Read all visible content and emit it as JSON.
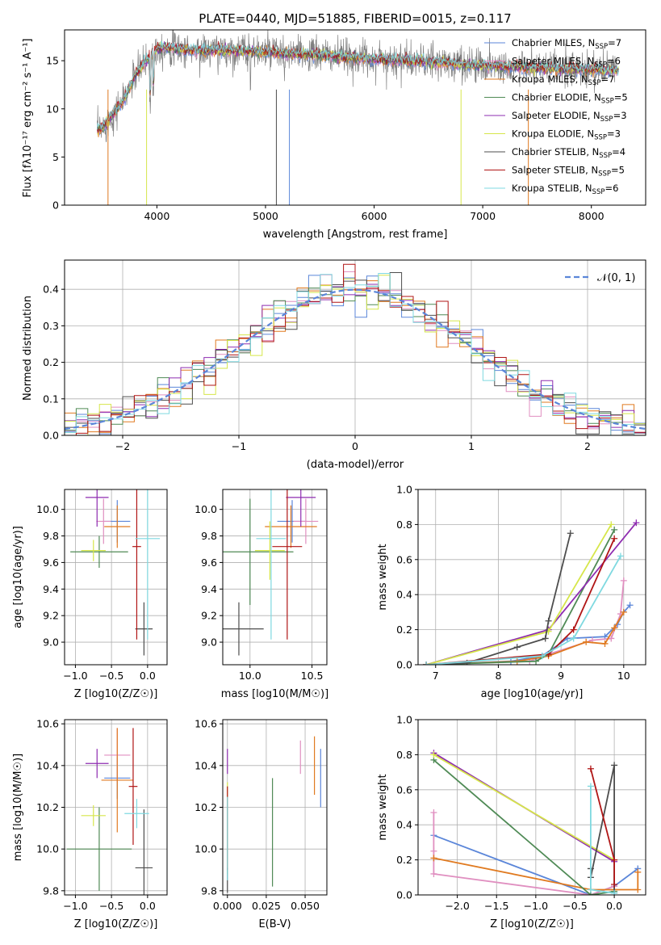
{
  "figure_title": "PLATE=0440, MJD=51885, FIBERID=0015, z=0.117",
  "colors": {
    "Chabrier MILES": "#5b86d9",
    "Salpeter MILES": "#e08fc0",
    "Kroupa MILES": "#e07a20",
    "Chabrier ELODIE": "#4f8a55",
    "Salpeter ELODIE": "#8e2cb0",
    "Kroupa ELODIE": "#d6e64a",
    "Chabrier STELIB": "#4d4d4d",
    "Salpeter STELIB": "#b01515",
    "Kroupa STELIB": "#7fd9e0"
  },
  "chart_data": [
    {
      "id": "spectrum",
      "type": "line",
      "title": "PLATE=0440, MJD=51885, FIBERID=0015, z=0.117",
      "xlabel": "wavelength [Angstrom, rest frame]",
      "ylabel": "Flux [f_λ 10^-17 erg cm^-2 s^-1 A^-1]",
      "xlim": [
        3150,
        8500
      ],
      "ylim": [
        0,
        18.2
      ],
      "xticks": [
        4000,
        5000,
        6000,
        7000,
        8000
      ],
      "yticks": [
        0,
        5,
        10,
        15
      ],
      "grid": false,
      "legend_position": "upper-right",
      "data_continuum": {
        "x": [
          3450,
          3500,
          3600,
          3700,
          3800,
          3900,
          4000,
          4100,
          4200,
          4400,
          4600,
          4800,
          5000,
          5200,
          5500,
          5800,
          6000,
          6300,
          6600,
          7000,
          7400,
          7800,
          8200
        ],
        "y": [
          7.8,
          8.0,
          9.5,
          11.0,
          13.5,
          15.0,
          16.3,
          16.4,
          16.2,
          16.0,
          16.1,
          16.0,
          15.9,
          15.7,
          15.6,
          15.3,
          15.2,
          15.0,
          14.8,
          14.5,
          14.3,
          14.1,
          14.0
        ]
      },
      "legend": [
        {
          "label": "Chabrier MILES",
          "nssp": "7"
        },
        {
          "label": "Salpeter MILES",
          "nssp": "6"
        },
        {
          "label": "Kroupa MILES",
          "nssp": "7"
        },
        {
          "label": "Chabrier ELODIE",
          "nssp": "5"
        },
        {
          "label": "Salpeter ELODIE",
          "nssp": "3"
        },
        {
          "label": "Kroupa ELODIE",
          "nssp": "3"
        },
        {
          "label": "Chabrier STELIB",
          "nssp": "4"
        },
        {
          "label": "Salpeter STELIB",
          "nssp": "5"
        },
        {
          "label": "Kroupa STELIB",
          "nssp": "6"
        }
      ],
      "nssp_label": "N_SSP="
    },
    {
      "id": "residuals",
      "type": "line",
      "xlabel": "(data-model)/error",
      "ylabel": "Normed distribution",
      "xlim": [
        -2.5,
        2.5
      ],
      "ylim": [
        0,
        0.48
      ],
      "xticks": [
        -2,
        -1,
        0,
        1,
        2
      ],
      "yticks": [
        0.0,
        0.1,
        0.2,
        0.3,
        0.4
      ],
      "grid": true,
      "legend_position": "upper-right",
      "legend_label": "𝒩(0, 1)",
      "reference_curve": "standard normal"
    },
    {
      "id": "age-vs-Z",
      "type": "scatter",
      "xlabel": "Z [log10(Z/Z☉)]",
      "ylabel": "age [log10(age/yr)]",
      "xlim": [
        -1.15,
        0.27
      ],
      "ylim": [
        8.83,
        10.15
      ],
      "xticks": [
        -1.0,
        -0.5,
        0.0
      ],
      "yticks": [
        9.0,
        9.2,
        9.4,
        9.6,
        9.8,
        10.0
      ],
      "grid": true,
      "points": [
        {
          "series": "Chabrier MILES",
          "x": -0.42,
          "y": 9.91,
          "xerr": 0.18,
          "yerr": 0.16
        },
        {
          "series": "Salpeter MILES",
          "x": -0.61,
          "y": 9.91,
          "xerr": 0.1,
          "yerr": 0.17
        },
        {
          "series": "Kroupa MILES",
          "x": -0.42,
          "y": 9.87,
          "xerr": 0.18,
          "yerr": 0.16
        },
        {
          "series": "Chabrier ELODIE",
          "x": -0.67,
          "y": 9.68,
          "xerr": 0.4,
          "yerr": 0.12
        },
        {
          "series": "Salpeter ELODIE",
          "x": -0.7,
          "y": 10.09,
          "xerr": 0.16,
          "yerr": 0.22
        },
        {
          "series": "Kroupa ELODIE",
          "x": -0.75,
          "y": 9.69,
          "xerr": 0.17,
          "yerr": 0.08
        },
        {
          "series": "Chabrier STELIB",
          "x": -0.05,
          "y": 9.1,
          "xerr": 0.12,
          "yerr": 0.2
        },
        {
          "series": "Salpeter STELIB",
          "x": -0.15,
          "y": 9.72,
          "xerr": 0.06,
          "yerr": 0.7
        },
        {
          "series": "Kroupa STELIB",
          "x": 0.0,
          "y": 9.78,
          "xerr": 0.17,
          "yerr": 0.76
        }
      ]
    },
    {
      "id": "age-vs-mass",
      "type": "scatter",
      "xlabel": "mass [log10(M/M☉)]",
      "xlim": [
        9.78,
        10.62
      ],
      "ylim": [
        8.83,
        10.15
      ],
      "xticks": [
        10.0,
        10.5
      ],
      "yticks": [
        9.0,
        9.2,
        9.4,
        9.6,
        9.8,
        10.0
      ],
      "grid": true,
      "points": [
        {
          "series": "Chabrier MILES",
          "x": 10.34,
          "y": 9.91,
          "xerr": 0.12,
          "yerr": 0.16
        },
        {
          "series": "Salpeter MILES",
          "x": 10.45,
          "y": 9.91,
          "xerr": 0.1,
          "yerr": 0.17
        },
        {
          "series": "Kroupa MILES",
          "x": 10.33,
          "y": 9.87,
          "xerr": 0.21,
          "yerr": 0.16
        },
        {
          "series": "Chabrier ELODIE",
          "x": 10.0,
          "y": 9.68,
          "xerr": 0.35,
          "yerr": 0.4
        },
        {
          "series": "Salpeter ELODIE",
          "x": 10.41,
          "y": 10.09,
          "xerr": 0.12,
          "yerr": 0.22
        },
        {
          "series": "Kroupa ELODIE",
          "x": 10.16,
          "y": 9.69,
          "xerr": 0.12,
          "yerr": 0.22
        },
        {
          "series": "Chabrier STELIB",
          "x": 9.91,
          "y": 9.1,
          "xerr": 0.2,
          "yerr": 0.2
        },
        {
          "series": "Salpeter STELIB",
          "x": 10.3,
          "y": 9.72,
          "xerr": 0.12,
          "yerr": 0.7
        },
        {
          "series": "Kroupa STELIB",
          "x": 10.17,
          "y": 9.78,
          "xerr": 0.12,
          "yerr": 0.76
        }
      ]
    },
    {
      "id": "weight-vs-age",
      "type": "line",
      "xlabel": "age [log10(age/yr)]",
      "ylabel": "mass weight",
      "xlim": [
        6.72,
        10.35
      ],
      "ylim": [
        0,
        1.0
      ],
      "xticks": [
        7,
        8,
        9,
        10
      ],
      "yticks": [
        0.0,
        0.2,
        0.4,
        0.6,
        0.8,
        1.0
      ],
      "grid": true,
      "series": [
        {
          "name": "Chabrier MILES",
          "x": [
            6.85,
            8.2,
            8.7,
            9.1,
            9.7,
            9.9,
            10.0,
            10.1
          ],
          "y": [
            0.0,
            0.02,
            0.05,
            0.15,
            0.16,
            0.23,
            0.3,
            0.34
          ]
        },
        {
          "name": "Salpeter MILES",
          "x": [
            6.85,
            8.5,
            8.8,
            9.5,
            9.8,
            9.95,
            10.0
          ],
          "y": [
            0.0,
            0.02,
            0.06,
            0.14,
            0.15,
            0.29,
            0.48
          ]
        },
        {
          "name": "Kroupa MILES",
          "x": [
            6.85,
            8.3,
            8.8,
            9.4,
            9.7,
            9.85,
            10.0
          ],
          "y": [
            0.0,
            0.02,
            0.05,
            0.13,
            0.12,
            0.21,
            0.3
          ]
        },
        {
          "name": "Chabrier ELODIE",
          "x": [
            6.85,
            8.6,
            8.8,
            9.85
          ],
          "y": [
            0.0,
            0.02,
            0.06,
            0.77
          ]
        },
        {
          "name": "Salpeter ELODIE",
          "x": [
            6.85,
            8.8,
            10.2
          ],
          "y": [
            0.0,
            0.2,
            0.81
          ]
        },
        {
          "name": "Kroupa ELODIE",
          "x": [
            6.85,
            8.8,
            9.8
          ],
          "y": [
            0.0,
            0.19,
            0.8
          ]
        },
        {
          "name": "Chabrier STELIB",
          "x": [
            6.85,
            7.5,
            8.3,
            8.75,
            8.8,
            9.15
          ],
          "y": [
            0.0,
            0.01,
            0.1,
            0.15,
            0.25,
            0.75
          ]
        },
        {
          "name": "Salpeter STELIB",
          "x": [
            6.85,
            8.8,
            9.2,
            9.85
          ],
          "y": [
            0.0,
            0.06,
            0.2,
            0.72
          ]
        },
        {
          "name": "Kroupa STELIB",
          "x": [
            6.85,
            8.7,
            9.2,
            9.95
          ],
          "y": [
            0.0,
            0.05,
            0.15,
            0.62
          ]
        }
      ]
    },
    {
      "id": "mass-vs-Z",
      "type": "scatter",
      "xlabel": "Z [log10(Z/Z☉)]",
      "ylabel": "mass [log10(M/M☉)]",
      "xlim": [
        -1.15,
        0.27
      ],
      "ylim": [
        9.78,
        10.62
      ],
      "xticks": [
        -1.0,
        -0.5,
        0.0
      ],
      "yticks": [
        9.8,
        10.0,
        10.2,
        10.4,
        10.6
      ],
      "grid": true,
      "points": [
        {
          "series": "Chabrier MILES",
          "x": -0.42,
          "y": 10.34,
          "xerr": 0.18,
          "yerr": 0.1
        },
        {
          "series": "Salpeter MILES",
          "x": -0.42,
          "y": 10.45,
          "xerr": 0.18,
          "yerr": 0.13
        },
        {
          "series": "Kroupa MILES",
          "x": -0.42,
          "y": 10.33,
          "xerr": 0.22,
          "yerr": 0.25
        },
        {
          "series": "Chabrier ELODIE",
          "x": -0.67,
          "y": 10.0,
          "xerr": 0.45,
          "yerr": 0.2
        },
        {
          "series": "Salpeter ELODIE",
          "x": -0.7,
          "y": 10.41,
          "xerr": 0.16,
          "yerr": 0.07
        },
        {
          "series": "Kroupa ELODIE",
          "x": -0.75,
          "y": 10.16,
          "xerr": 0.17,
          "yerr": 0.05
        },
        {
          "series": "Chabrier STELIB",
          "x": -0.05,
          "y": 9.91,
          "xerr": 0.12,
          "yerr": 0.28
        },
        {
          "series": "Salpeter STELIB",
          "x": -0.2,
          "y": 10.3,
          "xerr": 0.06,
          "yerr": 0.28
        },
        {
          "series": "Kroupa STELIB",
          "x": -0.15,
          "y": 10.17,
          "xerr": 0.17,
          "yerr": 0.07
        }
      ]
    },
    {
      "id": "mass-vs-EBV",
      "type": "scatter",
      "xlabel": "E(B-V)",
      "xlim": [
        -0.003,
        0.064
      ],
      "ylim": [
        9.78,
        10.62
      ],
      "xticks": [
        0.0,
        0.025,
        0.05
      ],
      "yticks": [
        9.8,
        10.0,
        10.2,
        10.4,
        10.6
      ],
      "grid": true,
      "points": [
        {
          "series": "Chabrier MILES",
          "x": 0.06,
          "y": 10.34,
          "yerr": 0.14
        },
        {
          "series": "Salpeter MILES",
          "x": 0.047,
          "y": 10.44,
          "yerr": 0.08
        },
        {
          "series": "Kroupa MILES",
          "x": 0.056,
          "y": 10.4,
          "yerr": 0.14
        },
        {
          "series": "Chabrier ELODIE",
          "x": 0.029,
          "y": 10.08,
          "yerr": 0.26
        },
        {
          "series": "Salpeter ELODIE",
          "x": 0.0,
          "y": 10.42,
          "yerr": 0.06
        },
        {
          "series": "Kroupa ELODIE",
          "x": 0.0,
          "y": 10.1,
          "yerr": 0.22
        },
        {
          "series": "Chabrier STELIB",
          "x": 0.0,
          "y": 9.85,
          "yerr": 0.06
        },
        {
          "series": "Salpeter STELIB",
          "x": 0.0,
          "y": 10.1,
          "yerr": 0.2
        },
        {
          "series": "Kroupa STELIB",
          "x": 0.0,
          "y": 10.05,
          "yerr": 0.2
        }
      ]
    },
    {
      "id": "weight-vs-Z",
      "type": "line",
      "xlabel": "Z [log10(Z/Z☉)]",
      "ylabel": "mass weight",
      "xlim": [
        -2.5,
        0.4
      ],
      "ylim": [
        0,
        1.0
      ],
      "xticks": [
        -2.0,
        -1.5,
        -1.0,
        -0.5,
        0.0
      ],
      "yticks": [
        0.0,
        0.2,
        0.4,
        0.6,
        0.8,
        1.0
      ],
      "grid": true,
      "series": [
        {
          "name": "Chabrier MILES",
          "x": [
            -2.3,
            -0.3,
            0.0,
            0.3
          ],
          "y": [
            0.34,
            0.0,
            0.05,
            0.15
          ]
        },
        {
          "name": "Salpeter MILES",
          "x": [
            -2.3,
            -2.3,
            -2.3,
            -0.3,
            0.0
          ],
          "y": [
            0.47,
            0.25,
            0.12,
            0.0,
            0.05
          ]
        },
        {
          "name": "Kroupa MILES",
          "x": [
            -2.3,
            -0.3,
            0.0,
            0.3,
            0.3
          ],
          "y": [
            0.21,
            0.03,
            0.03,
            0.03,
            0.13
          ]
        },
        {
          "name": "Chabrier ELODIE",
          "x": [
            -2.3,
            -0.3,
            0.0
          ],
          "y": [
            0.77,
            0.0,
            0.02
          ]
        },
        {
          "name": "Salpeter ELODIE",
          "x": [
            -2.3,
            0.0
          ],
          "y": [
            0.81,
            0.19
          ]
        },
        {
          "name": "Kroupa ELODIE",
          "x": [
            -2.3,
            0.0
          ],
          "y": [
            0.8,
            0.2
          ]
        },
        {
          "name": "Chabrier STELIB",
          "x": [
            -0.3,
            -0.3,
            0.0,
            0.0
          ],
          "y": [
            0.15,
            0.1,
            0.74,
            0.01
          ]
        },
        {
          "name": "Salpeter STELIB",
          "x": [
            -0.3,
            0.0,
            0.0
          ],
          "y": [
            0.72,
            0.2,
            0.06
          ]
        },
        {
          "name": "Kroupa STELIB",
          "x": [
            -0.3,
            -0.3,
            0.0
          ],
          "y": [
            0.62,
            0.03,
            0.01
          ]
        }
      ]
    }
  ]
}
